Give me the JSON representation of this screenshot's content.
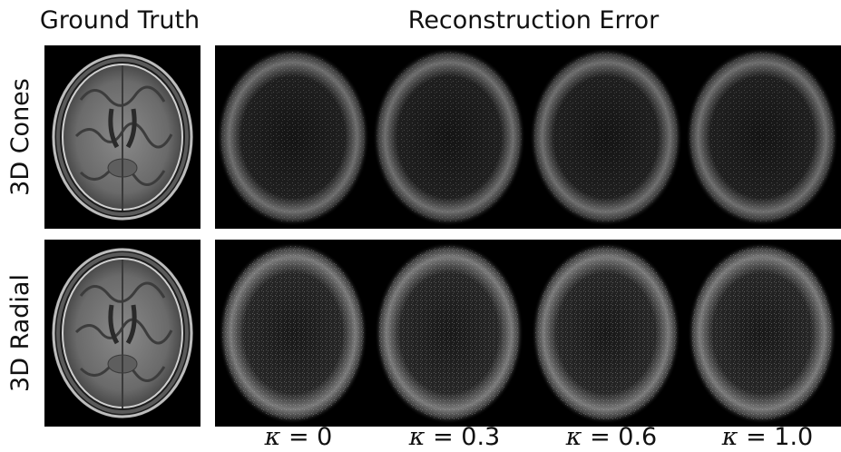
{
  "headers": {
    "ground_truth": "Ground Truth",
    "reconstruction_error": "Reconstruction Error"
  },
  "rows": [
    {
      "label": "3D Cones"
    },
    {
      "label": "3D Radial"
    }
  ],
  "kappa": {
    "symbol": "κ",
    "values": [
      "0",
      "0.3",
      "0.6",
      "1.0"
    ]
  },
  "colors": {
    "background": "#ffffff",
    "panel_background": "#000000",
    "text": "#111111"
  }
}
